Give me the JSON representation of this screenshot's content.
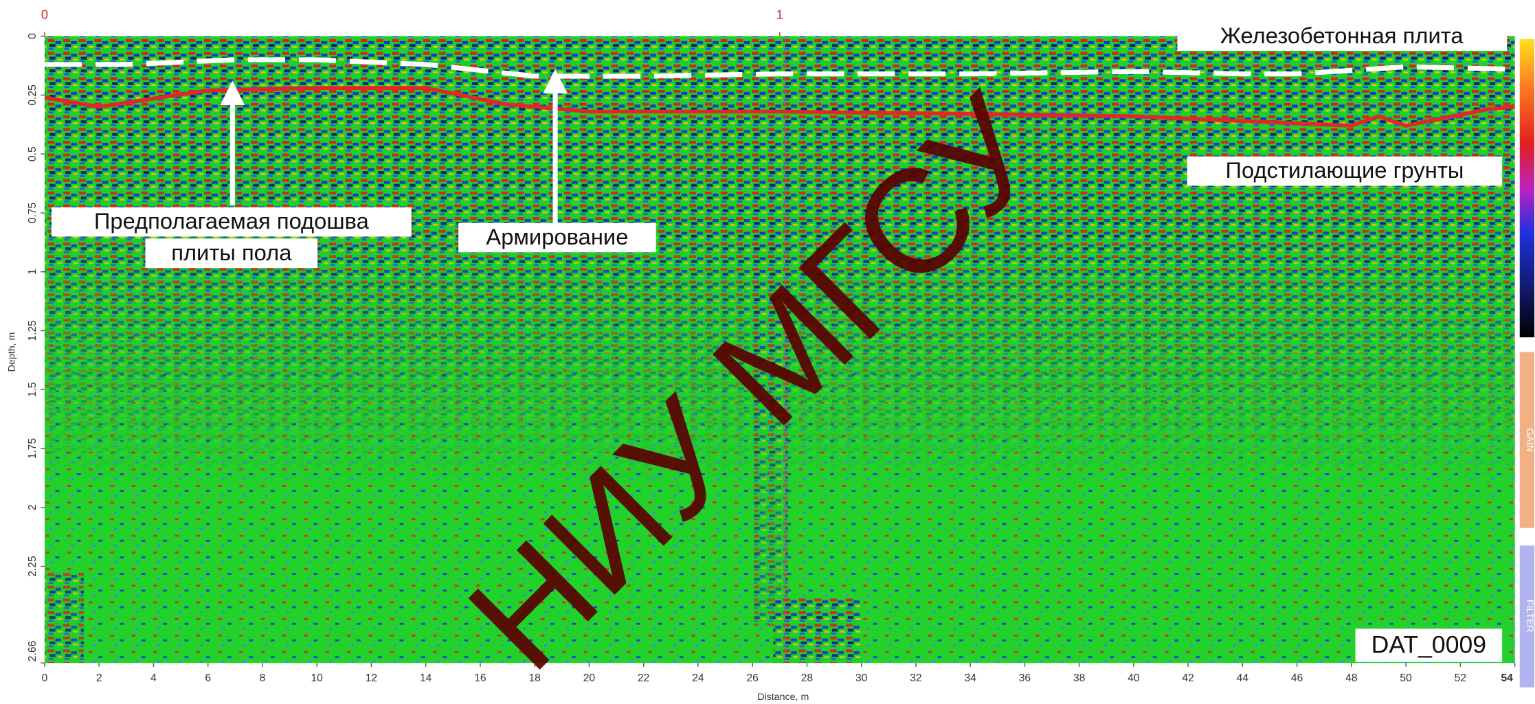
{
  "chart_data": {
    "type": "radargram",
    "xlabel": "Distance, m",
    "ylabel": "Depth, m",
    "xlim": [
      0,
      54
    ],
    "ylim": [
      0,
      2.66
    ],
    "xticks": [
      0,
      2,
      4,
      6,
      8,
      10,
      12,
      14,
      16,
      18,
      20,
      22,
      24,
      26,
      28,
      30,
      32,
      34,
      36,
      38,
      40,
      42,
      44,
      46,
      48,
      50,
      52,
      54
    ],
    "yticks": [
      0,
      0.25,
      0.5,
      0.75,
      1,
      1.25,
      1.5,
      1.75,
      2,
      2.25,
      2.66
    ],
    "y_inverted": true,
    "series": [
      {
        "color": "#ffffff",
        "dashed": true,
        "x": [
          0,
          3,
          7,
          10,
          14,
          18,
          22,
          27,
          34,
          40,
          44,
          46,
          50,
          54
        ],
        "values": [
          0.12,
          0.12,
          0.1,
          0.1,
          0.12,
          0.17,
          0.17,
          0.16,
          0.16,
          0.15,
          0.16,
          0.16,
          0.13,
          0.14
        ]
      },
      {
        "color": "#e02828",
        "dashed": false,
        "x": [
          0,
          2,
          6,
          10,
          14,
          17,
          20,
          27,
          34,
          40,
          46,
          48,
          49,
          50,
          53,
          54
        ],
        "values": [
          0.26,
          0.3,
          0.23,
          0.22,
          0.22,
          0.29,
          0.32,
          0.32,
          0.33,
          0.34,
          0.37,
          0.38,
          0.34,
          0.38,
          0.31,
          0.3
        ]
      }
    ],
    "markers": [
      {
        "label": "0",
        "x": 0
      },
      {
        "label": "1",
        "x": 27
      }
    ],
    "annotations": [
      {
        "text": "Железобетонная плита"
      },
      {
        "text": "Подстилающие грунты"
      },
      {
        "lines": [
          "Предполагаемая подошва",
          "плиты пола"
        ]
      },
      {
        "text": "Армирование"
      }
    ],
    "watermark": "НИУ МГСУ",
    "file_label": "DAT_0009",
    "side_panels": [
      "GAIN",
      "FILTER"
    ]
  }
}
